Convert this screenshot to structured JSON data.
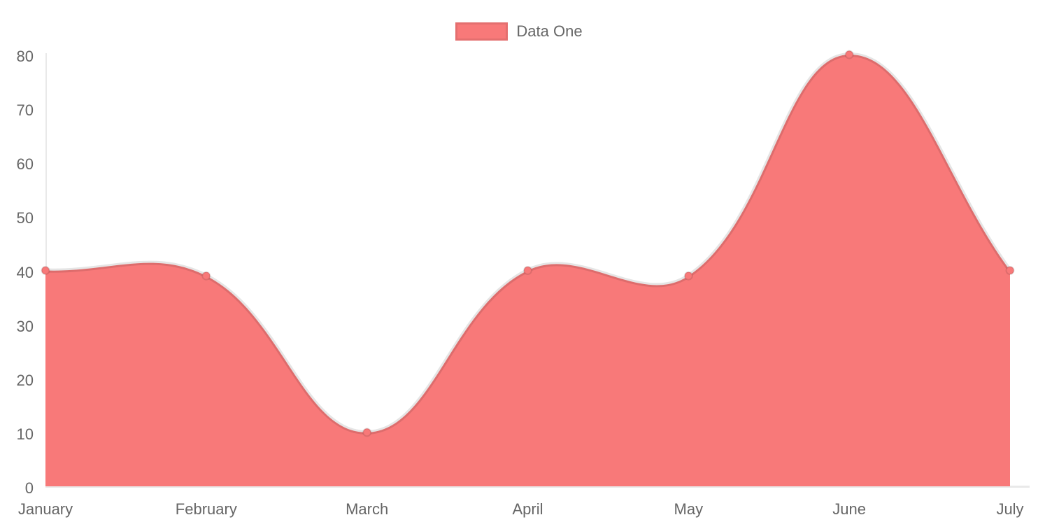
{
  "chart": {
    "legend": {
      "label": "Data One"
    }
  },
  "chart_data": {
    "type": "area",
    "title": "",
    "categories": [
      "January",
      "February",
      "March",
      "April",
      "May",
      "June",
      "July"
    ],
    "series": [
      {
        "name": "Data One",
        "values": [
          40,
          39,
          10,
          40,
          39,
          80,
          40
        ]
      }
    ],
    "xlabel": "",
    "ylabel": "",
    "ylim": [
      0,
      80
    ],
    "y_ticks": [
      0,
      10,
      20,
      30,
      40,
      50,
      60,
      70,
      80
    ],
    "grid": false,
    "legend_position": "top",
    "line_tension": 0.4,
    "colors": {
      "series_fill": "#f87979",
      "series_line": "rgba(0,0,0,0.10)",
      "point_fill": "#f87979",
      "point_border": "rgba(0,0,0,0.10)",
      "axis_line": "#e9e9e9",
      "tick_text": "#666666",
      "legend_text": "#666666"
    }
  }
}
